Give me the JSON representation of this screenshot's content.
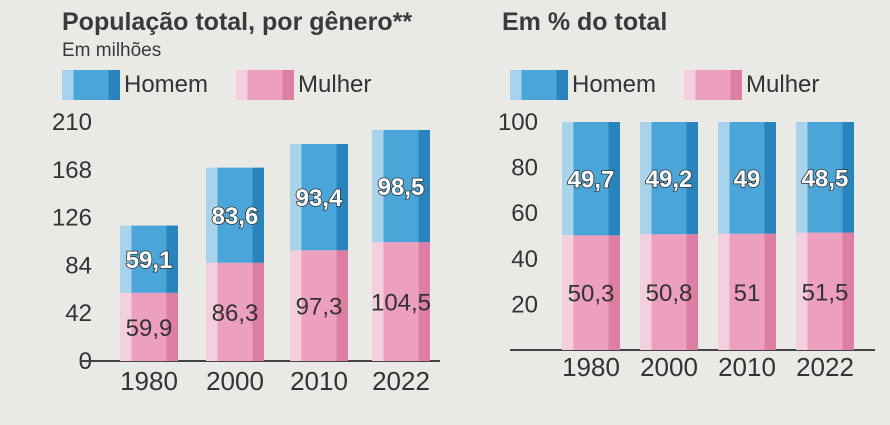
{
  "chart_data": [
    {
      "type": "bar",
      "stacked": true,
      "title": "População total, por gênero**",
      "subtitle": "Em milhões",
      "categories": [
        "1980",
        "2000",
        "2010",
        "2022"
      ],
      "series": [
        {
          "name": "Homem",
          "values": [
            59.1,
            83.6,
            93.4,
            98.5
          ],
          "labels": [
            "59,1",
            "83,6",
            "93,4",
            "98,5"
          ]
        },
        {
          "name": "Mulher",
          "values": [
            59.9,
            86.3,
            97.3,
            104.5
          ],
          "labels": [
            "59,9",
            "86,3",
            "97,3",
            "104,5"
          ]
        }
      ],
      "yticks": [
        "0",
        "42",
        "84",
        "126",
        "168",
        "210"
      ],
      "ylim": [
        0,
        210
      ],
      "legend": "top"
    },
    {
      "type": "bar",
      "stacked": true,
      "title": "Em % do total",
      "categories": [
        "1980",
        "2000",
        "2010",
        "2022"
      ],
      "series": [
        {
          "name": "Homem",
          "values": [
            49.7,
            49.2,
            49,
            48.5
          ],
          "labels": [
            "49,7",
            "49,2",
            "49",
            "48,5"
          ]
        },
        {
          "name": "Mulher",
          "values": [
            50.3,
            50.8,
            51,
            51.5
          ],
          "labels": [
            "50,3",
            "50,8",
            "51",
            "51,5"
          ]
        }
      ],
      "yticks": [
        "20",
        "40",
        "60",
        "80",
        "100"
      ],
      "ylim": [
        0,
        100
      ],
      "legend": "top"
    }
  ],
  "colors": {
    "men_light": "#a9d3ea",
    "men_main": "#4aa6d8",
    "men_dark": "#2784bd",
    "women_light": "#f4cfdd",
    "women_main": "#ec9fbf",
    "women_dark": "#dd7ea5",
    "axis": "#444444",
    "text": "#333333"
  }
}
